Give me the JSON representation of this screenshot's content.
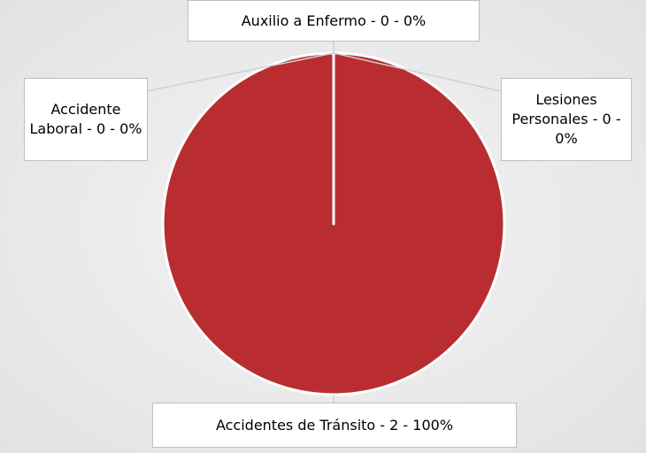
{
  "chart_data": {
    "type": "pie",
    "categories": [
      "Accidente Laboral - 0 - 0%",
      "Accidentes de Tránsito - 2 - 100%",
      "Auxilio a Enfermo - 0 - 0%",
      "Lesiones Personales - 0 - 0%"
    ],
    "values": [
      0,
      2,
      0,
      0
    ],
    "color": "#b92d31"
  }
}
